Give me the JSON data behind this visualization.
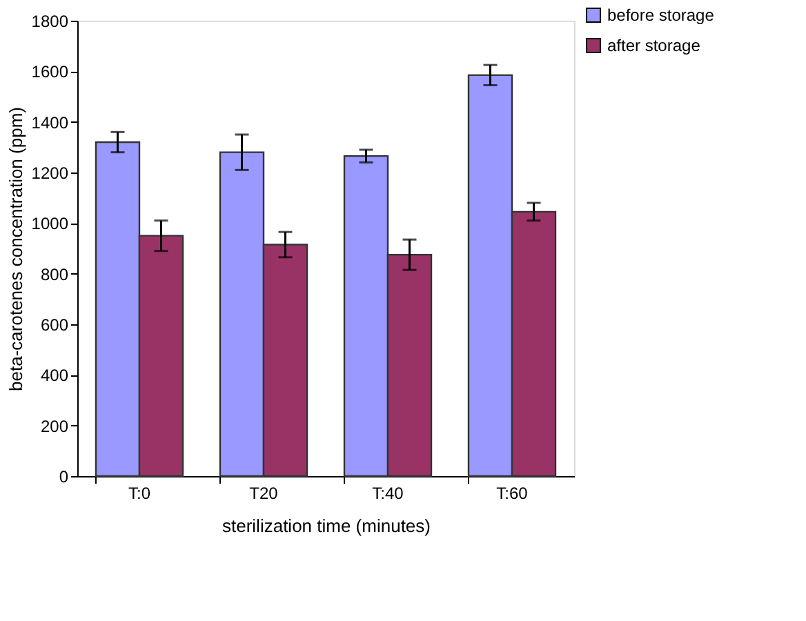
{
  "chart_data": {
    "type": "bar",
    "xlabel": "sterilization time (minutes)",
    "ylabel": "beta-carotenes concentration (ppm)",
    "categories": [
      "T:0",
      "T20",
      "T:40",
      "T:60"
    ],
    "series": [
      {
        "name": "before storage",
        "color": "#9999ff",
        "values": [
          1320,
          1280,
          1265,
          1585
        ],
        "errors": [
          40,
          70,
          25,
          40
        ]
      },
      {
        "name": "after storage",
        "color": "#993366",
        "values": [
          950,
          915,
          875,
          1045
        ],
        "errors": [
          60,
          50,
          60,
          35
        ]
      }
    ],
    "ylim": [
      0,
      1800
    ],
    "yticks": [
      0,
      200,
      400,
      600,
      800,
      1000,
      1200,
      1400,
      1600,
      1800
    ],
    "grid": false,
    "legend": "top right"
  }
}
